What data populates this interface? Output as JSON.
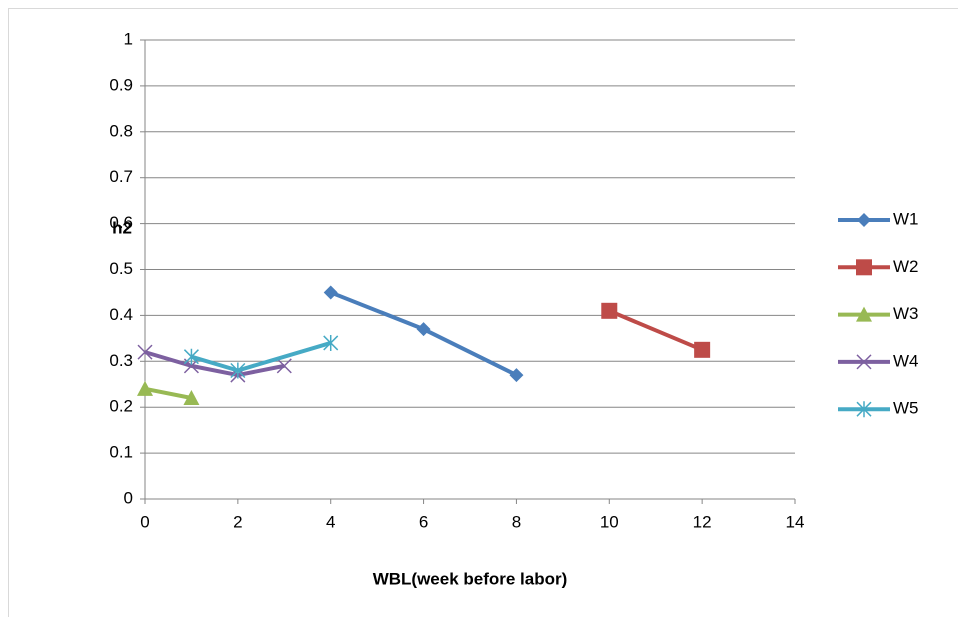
{
  "chart_data": {
    "type": "line",
    "xlabel": "WBL(week before labor)",
    "ylabel": "h2",
    "xlim": [
      0,
      14
    ],
    "xticks": [
      0,
      2,
      4,
      6,
      8,
      10,
      12,
      14
    ],
    "ylim": [
      0,
      1
    ],
    "yticks": [
      0,
      0.1,
      0.2,
      0.3,
      0.4,
      0.5,
      0.6,
      0.7,
      0.8,
      0.9,
      1
    ],
    "grid": true,
    "legend": "right",
    "series": [
      {
        "name": "W1",
        "color": "#4a7ebb",
        "marker": "diamond",
        "x": [
          4,
          6,
          8
        ],
        "values": [
          0.45,
          0.37,
          0.27
        ]
      },
      {
        "name": "W2",
        "color": "#be4b48",
        "marker": "square",
        "x": [
          10,
          12
        ],
        "values": [
          0.41,
          0.325
        ]
      },
      {
        "name": "W3",
        "color": "#98b954",
        "marker": "triangle",
        "x": [
          0,
          1
        ],
        "values": [
          0.24,
          0.22
        ]
      },
      {
        "name": "W4",
        "color": "#7d60a0",
        "marker": "x",
        "x": [
          0,
          1,
          2,
          3
        ],
        "values": [
          0.32,
          0.29,
          0.27,
          0.29
        ]
      },
      {
        "name": "W5",
        "color": "#46aac5",
        "marker": "star",
        "x": [
          1,
          2,
          4
        ],
        "values": [
          0.31,
          0.28,
          0.34
        ]
      }
    ]
  }
}
